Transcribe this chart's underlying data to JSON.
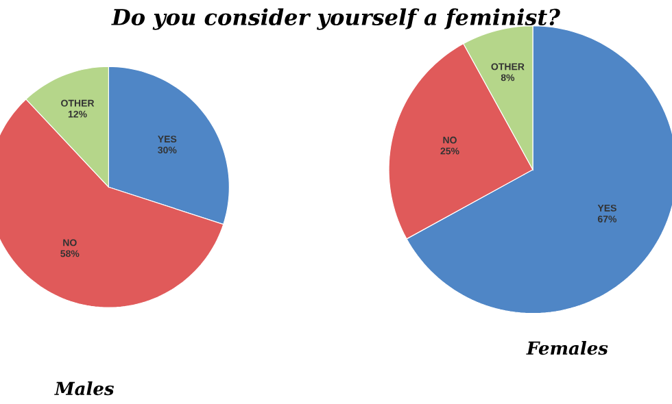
{
  "chart_data": [
    {
      "type": "pie",
      "title": "Do you consider yourself a feminist?",
      "xlabel": "Males",
      "categories": [
        "YES",
        "NO",
        "OTHER"
      ],
      "values": [
        30,
        58,
        12
      ],
      "value_labels": [
        "30%",
        "58%",
        "12%"
      ],
      "colors": [
        "#4f86c6",
        "#e05a5a",
        "#b5d68a"
      ]
    },
    {
      "type": "pie",
      "xlabel": "Females",
      "categories": [
        "YES",
        "NO",
        "OTHER"
      ],
      "values": [
        67,
        25,
        8
      ],
      "value_labels": [
        "67%",
        "25%",
        "8%"
      ],
      "colors": [
        "#4f86c6",
        "#e05a5a",
        "#b5d68a"
      ]
    }
  ]
}
